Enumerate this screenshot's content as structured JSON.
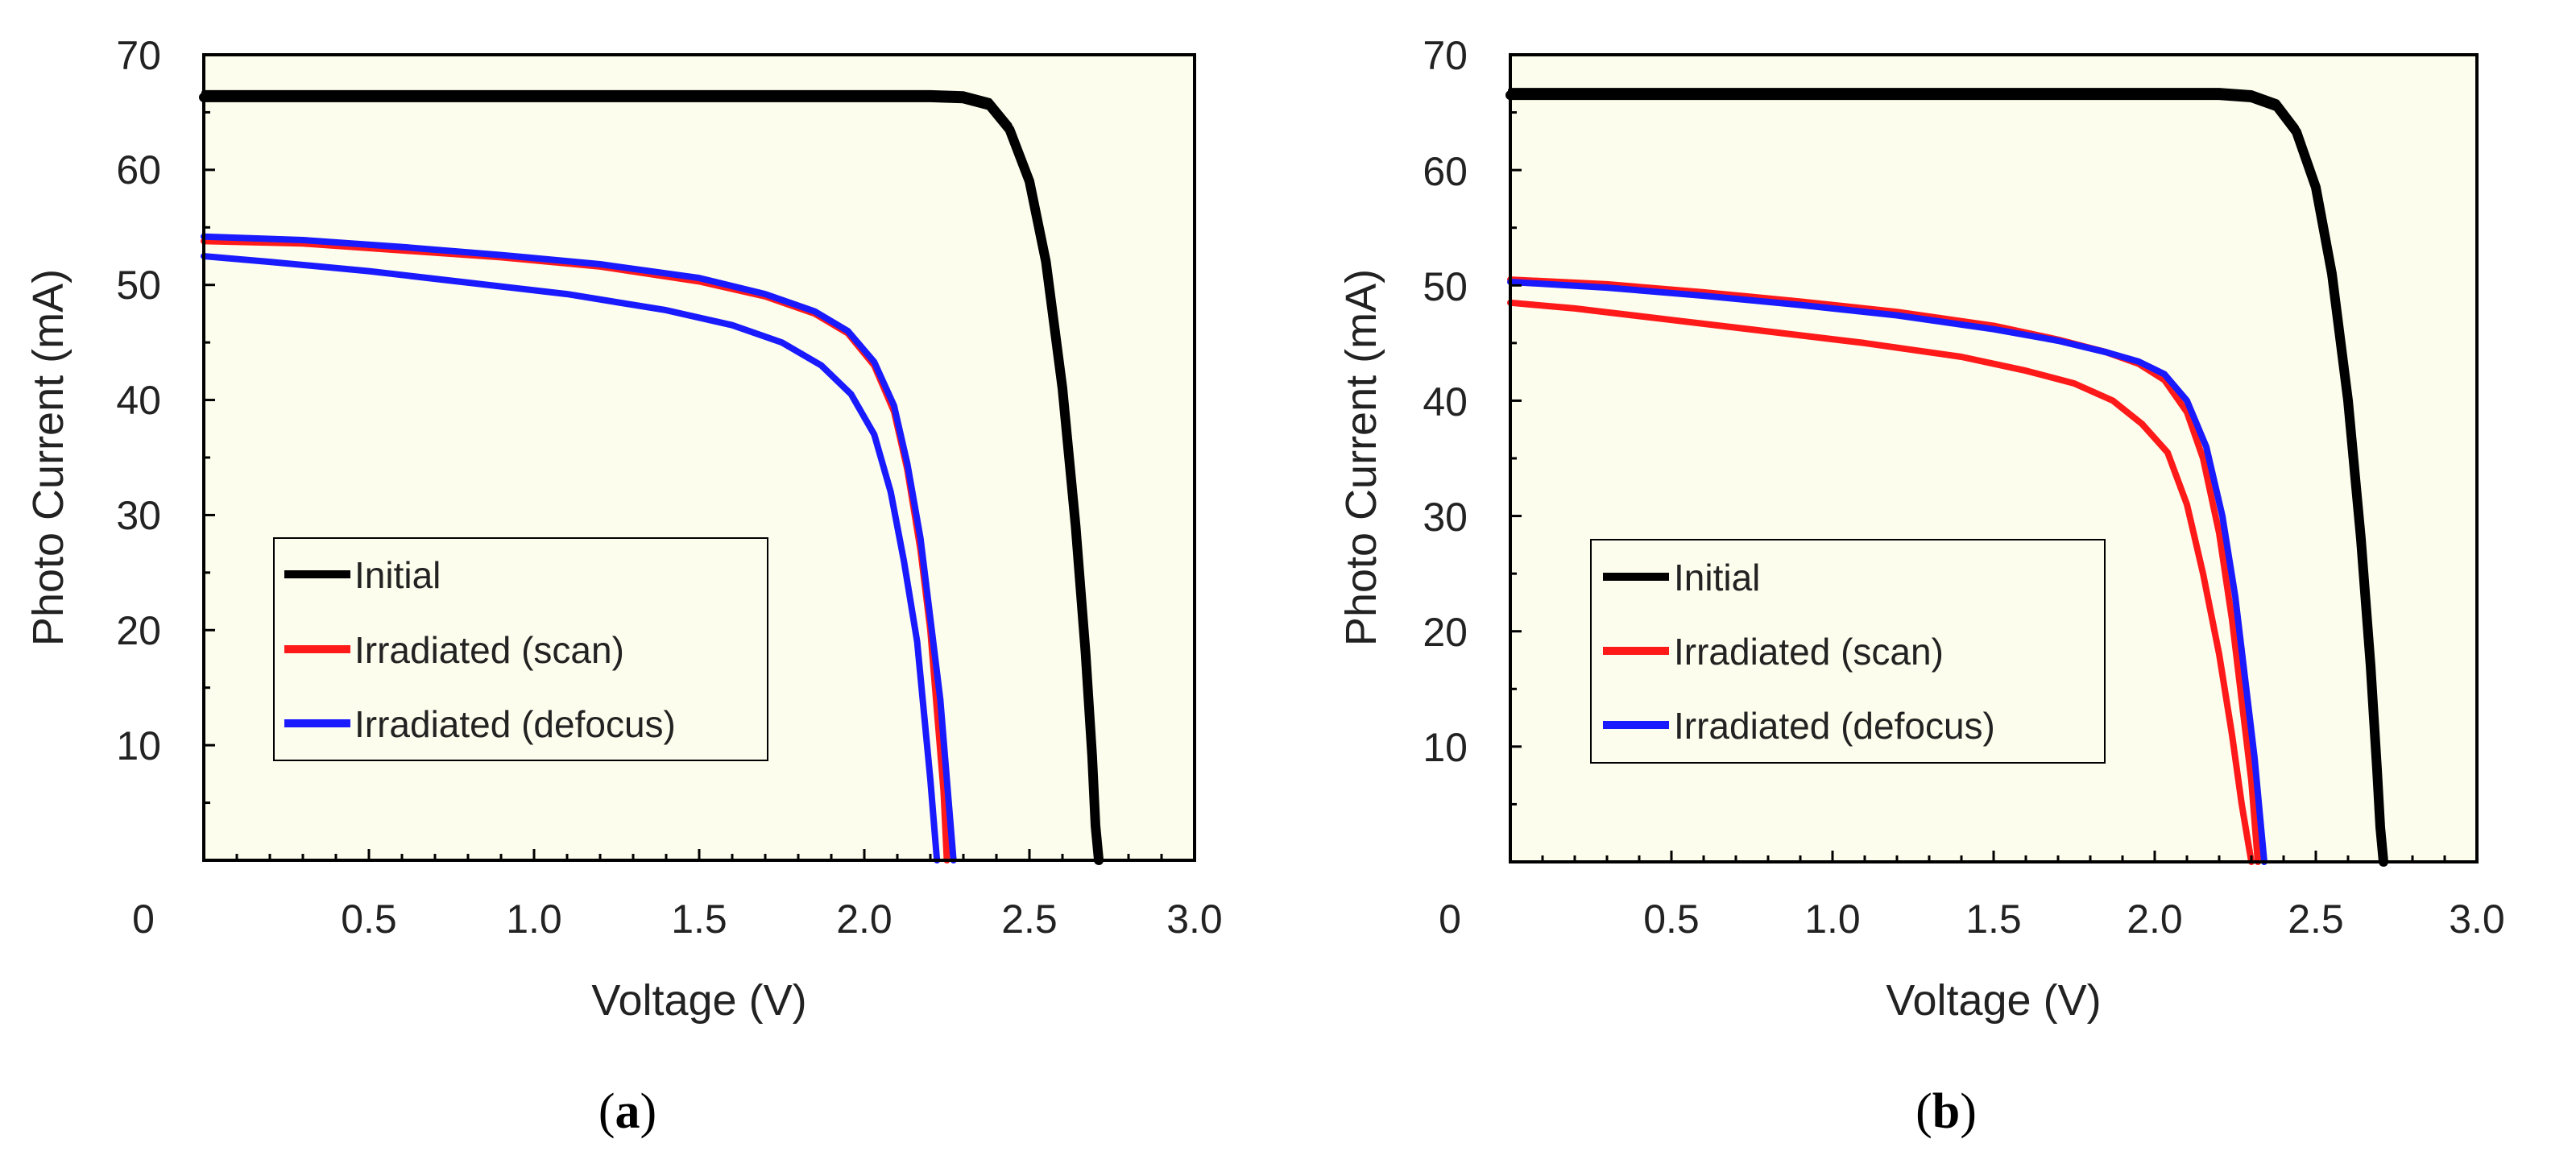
{
  "colors": {
    "plot_background": "#FDFDED",
    "axis": "#000000",
    "initial": "#000000",
    "scan": "#FF1A1A",
    "defocus": "#1A1AFF"
  },
  "chart_data": [
    {
      "panel": "a",
      "caption": {
        "open": "(",
        "letter": "a",
        "close": ")"
      },
      "type": "line",
      "xlabel": "Voltage (V)",
      "ylabel": "Photo Current (mA)",
      "xlim": [
        0,
        3.0
      ],
      "ylim": [
        0,
        70
      ],
      "x_ticks": [
        "0.5",
        "1.0",
        "1.5",
        "2.0",
        "2.5",
        "3.0"
      ],
      "y_ticks": [
        "10",
        "20",
        "30",
        "40",
        "50",
        "60",
        "70"
      ],
      "origin_label": "0",
      "legend": {
        "placement": "bottom-left",
        "entries": [
          "Initial",
          "Irradiated (scan)",
          "Irradiated (defocus)"
        ]
      },
      "series": [
        {
          "name": "Initial",
          "key": "initial",
          "isc": 66.3,
          "voc": 2.71,
          "knee_v": 2.34,
          "pts": [
            [
              0,
              66.3
            ],
            [
              2.2,
              66.3
            ],
            [
              2.3,
              66.2
            ],
            [
              2.38,
              65.6
            ],
            [
              2.44,
              63.5
            ],
            [
              2.5,
              59
            ],
            [
              2.55,
              52
            ],
            [
              2.6,
              41
            ],
            [
              2.64,
              29
            ],
            [
              2.67,
              18
            ],
            [
              2.69,
              9
            ],
            [
              2.7,
              3
            ],
            [
              2.71,
              0
            ]
          ]
        },
        {
          "name": "Irradiated (scan)",
          "key": "scan",
          "pts": [
            [
              0,
              53.8
            ],
            [
              0.3,
              53.6
            ],
            [
              0.6,
              53.0
            ],
            [
              0.9,
              52.4
            ],
            [
              1.2,
              51.6
            ],
            [
              1.5,
              50.3
            ],
            [
              1.7,
              49.0
            ],
            [
              1.85,
              47.5
            ],
            [
              1.95,
              45.8
            ],
            [
              2.03,
              43
            ],
            [
              2.09,
              39
            ],
            [
              2.13,
              34
            ],
            [
              2.17,
              27
            ],
            [
              2.2,
              20
            ],
            [
              2.22,
              13
            ],
            [
              2.24,
              6
            ],
            [
              2.25,
              0
            ]
          ]
        },
        {
          "name": "Irradiated (defocus)",
          "key": "defocus",
          "pts": [
            [
              0,
              54.2
            ],
            [
              0.3,
              53.9
            ],
            [
              0.6,
              53.3
            ],
            [
              0.9,
              52.6
            ],
            [
              1.2,
              51.8
            ],
            [
              1.5,
              50.6
            ],
            [
              1.7,
              49.2
            ],
            [
              1.85,
              47.7
            ],
            [
              1.95,
              46.0
            ],
            [
              2.03,
              43.3
            ],
            [
              2.09,
              39.5
            ],
            [
              2.13,
              34.5
            ],
            [
              2.17,
              28
            ],
            [
              2.2,
              21
            ],
            [
              2.23,
              14
            ],
            [
              2.25,
              7
            ],
            [
              2.27,
              0
            ]
          ]
        },
        {
          "name": "Irradiated (defocus)",
          "key": "defocus",
          "pts": [
            [
              0,
              52.5
            ],
            [
              0.2,
              52.0
            ],
            [
              0.5,
              51.2
            ],
            [
              0.8,
              50.2
            ],
            [
              1.1,
              49.2
            ],
            [
              1.4,
              47.8
            ],
            [
              1.6,
              46.5
            ],
            [
              1.75,
              45.0
            ],
            [
              1.87,
              43.0
            ],
            [
              1.96,
              40.5
            ],
            [
              2.03,
              37
            ],
            [
              2.08,
              32
            ],
            [
              2.12,
              26
            ],
            [
              2.16,
              19
            ],
            [
              2.18,
              13
            ],
            [
              2.2,
              7
            ],
            [
              2.22,
              0
            ]
          ]
        }
      ]
    },
    {
      "panel": "b",
      "caption": {
        "open": "(",
        "letter": "b",
        "close": ")"
      },
      "type": "line",
      "xlabel": "Voltage (V)",
      "ylabel": "Photo Current (mA)",
      "xlim": [
        0,
        3.0
      ],
      "ylim": [
        0,
        70
      ],
      "x_ticks": [
        "0.5",
        "1.0",
        "1.5",
        "2.0",
        "2.5",
        "3.0"
      ],
      "y_ticks": [
        "10",
        "20",
        "30",
        "40",
        "50",
        "60",
        "70"
      ],
      "origin_label": "0",
      "legend": {
        "placement": "bottom-left",
        "entries": [
          "Initial",
          "Irradiated (scan)",
          "Irradiated (defocus)"
        ]
      },
      "series": [
        {
          "name": "Initial",
          "key": "initial",
          "pts": [
            [
              0,
              66.5
            ],
            [
              2.2,
              66.5
            ],
            [
              2.3,
              66.3
            ],
            [
              2.38,
              65.5
            ],
            [
              2.44,
              63.3
            ],
            [
              2.5,
              58.5
            ],
            [
              2.55,
              51
            ],
            [
              2.6,
              40
            ],
            [
              2.64,
              28
            ],
            [
              2.67,
              17
            ],
            [
              2.69,
              8
            ],
            [
              2.7,
              3
            ],
            [
              2.71,
              0
            ]
          ]
        },
        {
          "name": "Irradiated (scan)",
          "key": "scan",
          "pts": [
            [
              0,
              50.5
            ],
            [
              0.3,
              50.1
            ],
            [
              0.6,
              49.4
            ],
            [
              0.9,
              48.6
            ],
            [
              1.2,
              47.7
            ],
            [
              1.5,
              46.5
            ],
            [
              1.7,
              45.3
            ],
            [
              1.85,
              44.2
            ],
            [
              1.95,
              43.2
            ],
            [
              2.03,
              41.8
            ],
            [
              2.1,
              39
            ],
            [
              2.15,
              35
            ],
            [
              2.2,
              28.5
            ],
            [
              2.24,
              21
            ],
            [
              2.27,
              14
            ],
            [
              2.3,
              7
            ],
            [
              2.32,
              0
            ]
          ]
        },
        {
          "name": "Irradiated (scan)",
          "key": "scan",
          "pts": [
            [
              0,
              48.5
            ],
            [
              0.2,
              48.0
            ],
            [
              0.5,
              47.0
            ],
            [
              0.8,
              46.0
            ],
            [
              1.1,
              45.0
            ],
            [
              1.4,
              43.8
            ],
            [
              1.6,
              42.6
            ],
            [
              1.75,
              41.5
            ],
            [
              1.87,
              40.0
            ],
            [
              1.96,
              38.0
            ],
            [
              2.04,
              35.5
            ],
            [
              2.1,
              31
            ],
            [
              2.15,
              25
            ],
            [
              2.2,
              18
            ],
            [
              2.24,
              11
            ],
            [
              2.27,
              5
            ],
            [
              2.3,
              0
            ]
          ]
        },
        {
          "name": "Irradiated (defocus)",
          "key": "defocus",
          "pts": [
            [
              0,
              50.3
            ],
            [
              0.3,
              49.8
            ],
            [
              0.6,
              49.1
            ],
            [
              0.9,
              48.3
            ],
            [
              1.2,
              47.4
            ],
            [
              1.5,
              46.2
            ],
            [
              1.7,
              45.2
            ],
            [
              1.85,
              44.2
            ],
            [
              1.95,
              43.4
            ],
            [
              2.03,
              42.3
            ],
            [
              2.1,
              40
            ],
            [
              2.16,
              36
            ],
            [
              2.21,
              30
            ],
            [
              2.25,
              23
            ],
            [
              2.28,
              16
            ],
            [
              2.31,
              9
            ],
            [
              2.33,
              3
            ],
            [
              2.34,
              0
            ]
          ]
        }
      ]
    }
  ]
}
